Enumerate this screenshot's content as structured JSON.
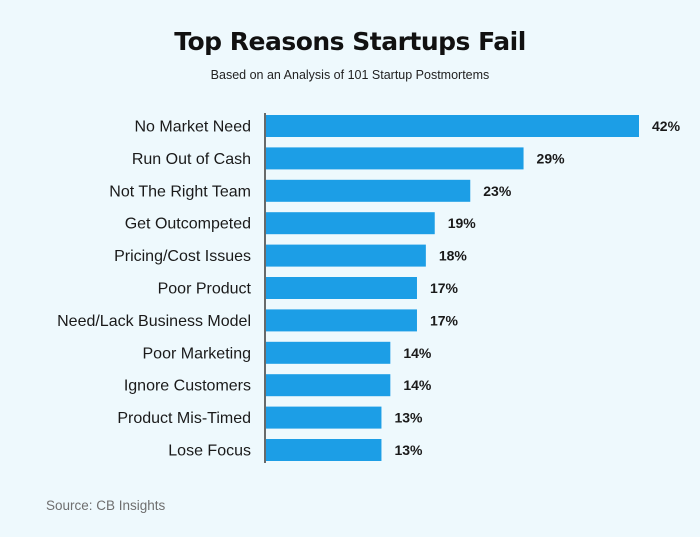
{
  "chart_data": {
    "type": "bar",
    "orientation": "horizontal",
    "title": "Top Reasons Startups Fail",
    "subtitle": "Based on an Analysis of 101 Startup Postmortems",
    "categories": [
      "No Market Need",
      "Run Out of Cash",
      "Not The Right Team",
      "Get Outcompeted",
      "Pricing/Cost Issues",
      "Poor Product",
      "Need/Lack Business Model",
      "Poor Marketing",
      "Ignore Customers",
      "Product Mis-Timed",
      "Lose Focus"
    ],
    "values": [
      42,
      29,
      23,
      19,
      18,
      17,
      17,
      14,
      14,
      13,
      13
    ],
    "value_labels": [
      "42%",
      "29%",
      "23%",
      "19%",
      "18%",
      "17%",
      "17%",
      "14%",
      "14%",
      "13%",
      "13%"
    ],
    "unit": "%",
    "xlim": [
      0,
      42
    ],
    "grid": false,
    "legend": "none",
    "bar_color": "#1c9ee6"
  },
  "source": "Source: CB Insights"
}
